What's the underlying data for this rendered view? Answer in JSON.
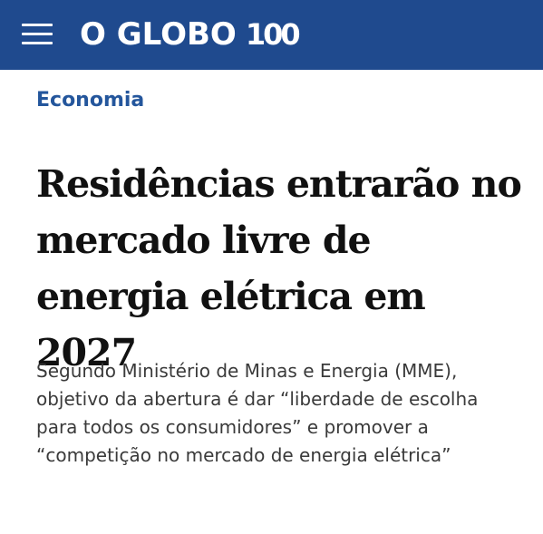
{
  "header": {
    "logo_word": "O GLOBO",
    "logo_number": "100",
    "brand_color": "#1f4a8e"
  },
  "article": {
    "section": "Economia",
    "title": "Residências entrarão no mercado livre de energia elétrica em 2027",
    "subtitle": "Segundo Ministério de Minas e Energia (MME), objetivo da abertura é dar “liberdade de escolha para todos os consumidores” e promover a “competição no mercado de energia elétrica”"
  },
  "icons": {
    "menu": "hamburger-menu-icon"
  }
}
